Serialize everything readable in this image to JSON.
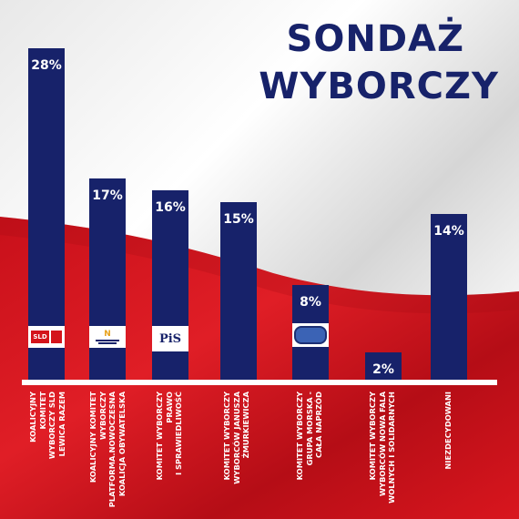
{
  "chart_data": {
    "type": "bar",
    "title": "SONDAŻ WYBORCZY",
    "title_lines": [
      "SONDAŻ",
      "WYBORCZY"
    ],
    "categories": [
      [
        "KOALICYJNY",
        "KOMITET",
        "WYBORCZY SLD",
        "LEWICA RAZEM"
      ],
      [
        "KOALICYJNY KOMITET",
        "WYBORCZY",
        "PLATFORMA.NOWOCZESNA",
        "KOALICJA OBYWATELSKA"
      ],
      [
        "KOMITET WYBORCZY",
        "PRAWO",
        "I SPRAWIEDLIWOŚĆ"
      ],
      [
        "KOMITET WYBORCZY",
        "WYBORCÓW JANUSZA",
        "ŻMURKIEWICZA"
      ],
      [
        "KOMITET WYBORCZY",
        "GRUPA MORSKA -",
        "CAŁA NAPRZÓD"
      ],
      [
        "KOMITET WYBORCZY",
        "WYBORCÓW NOWA FALA",
        "WOLNYCH I SOLIDARNYCH"
      ],
      [
        "NIEZDECYDOWANI"
      ]
    ],
    "values": [
      28,
      17,
      16,
      15,
      8,
      2,
      14
    ],
    "value_labels": [
      "28%",
      "17%",
      "16%",
      "15%",
      "8%",
      "2%",
      "14%"
    ],
    "logos": [
      "SLD",
      "N",
      "PiS",
      "",
      "",
      "",
      ""
    ],
    "ylim": [
      0,
      28
    ],
    "grid": false,
    "colors": {
      "bar": "#17226a",
      "label": "#ffffff",
      "title": "#17226a",
      "flag_white": "#f2f2f2",
      "flag_red": "#d4141b"
    }
  }
}
